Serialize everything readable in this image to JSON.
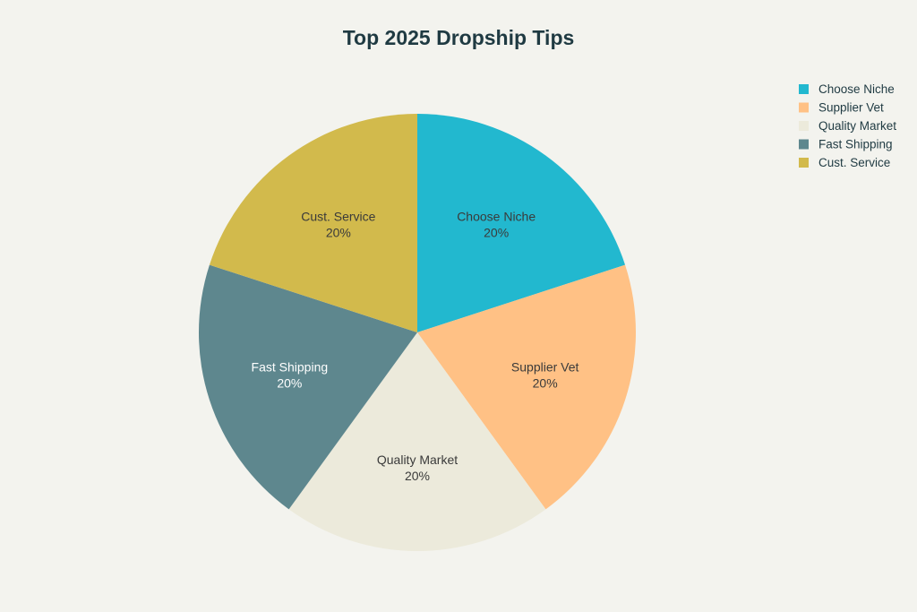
{
  "chart_data": {
    "type": "pie",
    "title": "Top 2025 Dropship Tips",
    "categories": [
      "Choose Niche",
      "Supplier Vet",
      "Quality Market",
      "Fast Shipping",
      "Cust. Service"
    ],
    "values": [
      20,
      20,
      20,
      20,
      20
    ],
    "value_labels": [
      "20%",
      "20%",
      "20%",
      "20%",
      "20%"
    ],
    "colors": [
      "#22b8cf",
      "#ffc185",
      "#eceadb",
      "#5e878e",
      "#d2ba4c"
    ],
    "label_light": [
      false,
      false,
      false,
      true,
      false
    ],
    "legend_position": "top-right",
    "start_angle_deg": 0,
    "direction": "clockwise"
  }
}
